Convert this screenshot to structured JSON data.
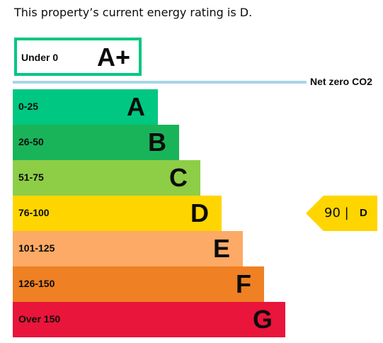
{
  "intro_text": "This property’s current energy rating is D.",
  "aplus": {
    "range": "Under 0",
    "letter": "A+",
    "border_color": "#00c781"
  },
  "net_zero": {
    "label": "Net zero CO2",
    "line_color": "#a8d5e8"
  },
  "bands": [
    {
      "range": "0-25",
      "letter": "A",
      "color": "#00c781"
    },
    {
      "range": "26-50",
      "letter": "B",
      "color": "#19b459"
    },
    {
      "range": "51-75",
      "letter": "C",
      "color": "#8dce46"
    },
    {
      "range": "76-100",
      "letter": "D",
      "color": "#ffd500"
    },
    {
      "range": "101-125",
      "letter": "E",
      "color": "#fcaa65"
    },
    {
      "range": "126-150",
      "letter": "F",
      "color": "#ef8023"
    },
    {
      "range": "Over 150",
      "letter": "G",
      "color": "#e9153b"
    }
  ],
  "current_rating": {
    "score": "90 |",
    "letter": "D",
    "color": "#ffd500"
  }
}
